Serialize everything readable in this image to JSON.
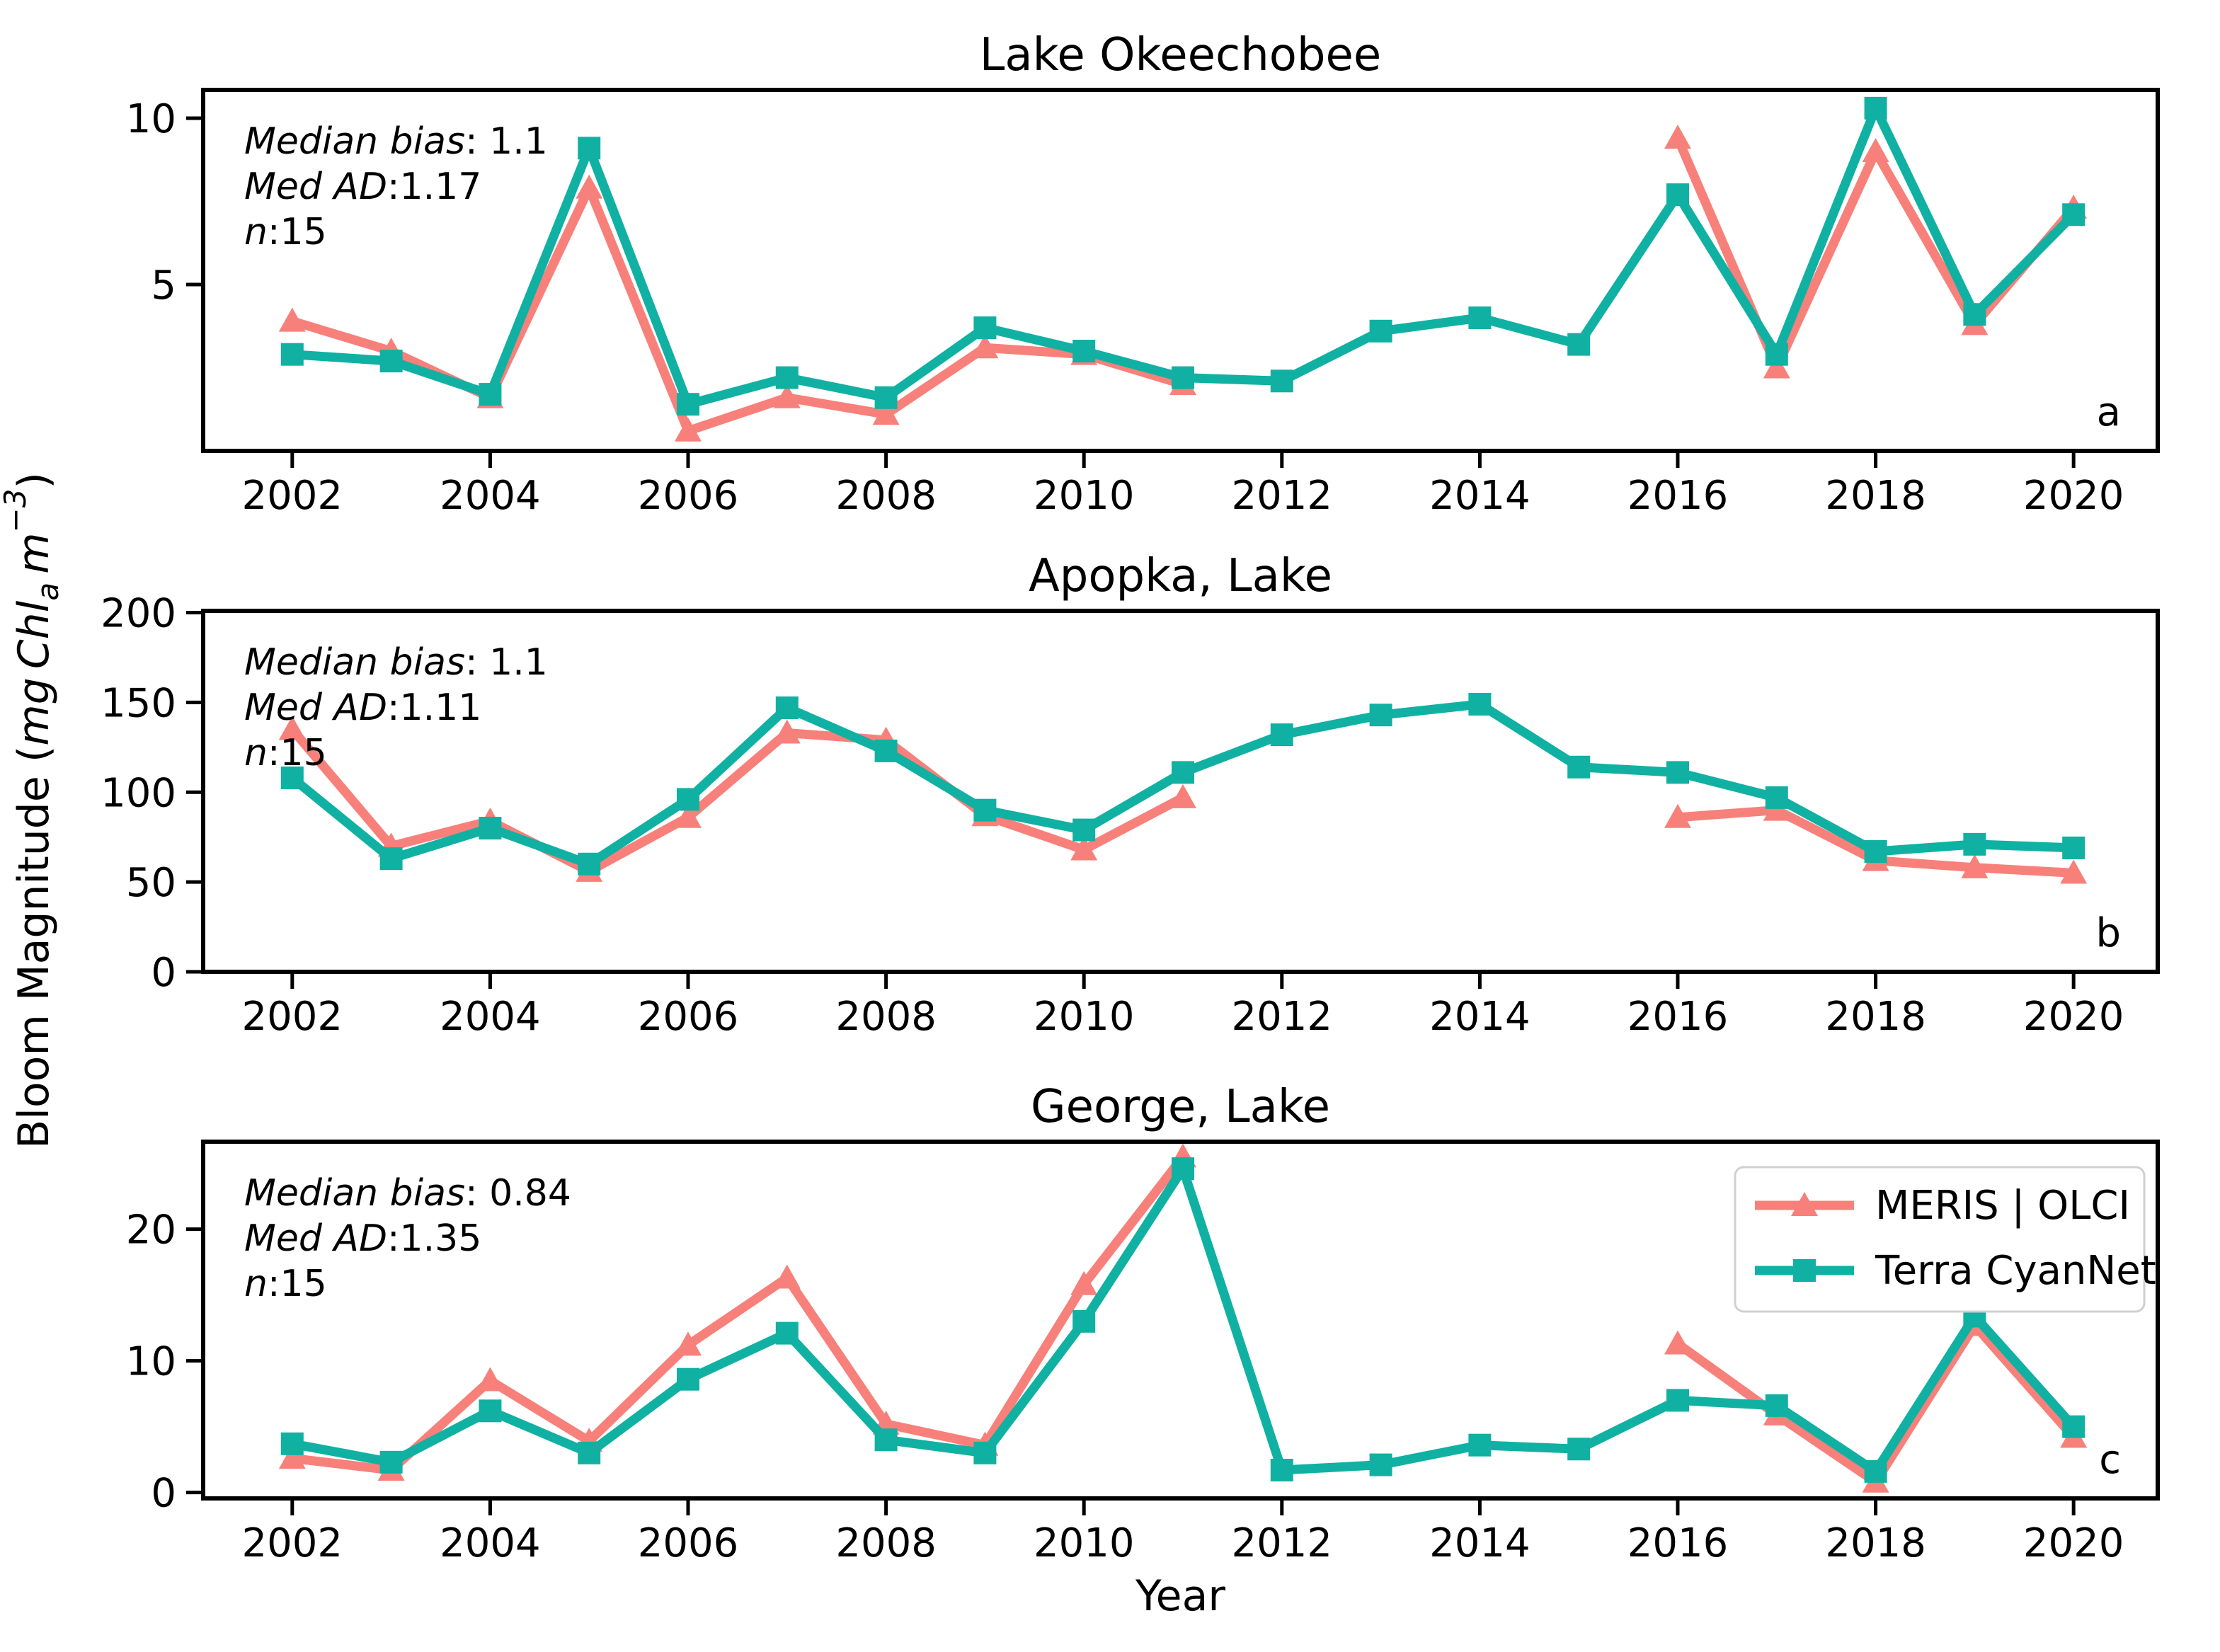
{
  "figure": {
    "xlabel": "Year",
    "ylabel_plain": "Bloom Magnitude (mg Chl_a m^-3)",
    "ylabel_parts": [
      {
        "t": "Bloom Magnitude (",
        "italic": false,
        "shift": "none"
      },
      {
        "t": "mg Chl",
        "italic": true,
        "shift": "none"
      },
      {
        "t": "a",
        "italic": true,
        "shift": "sub"
      },
      {
        "t": " m",
        "italic": true,
        "shift": "none"
      },
      {
        "t": "−3",
        "italic": true,
        "shift": "sup"
      },
      {
        "t": ")",
        "italic": false,
        "shift": "none"
      }
    ],
    "background_color": "#ffffff",
    "text_color": "#000000",
    "spine_color": "#000000"
  },
  "colors": {
    "meris": "#f8807a",
    "terra": "#10b1a3"
  },
  "legend": {
    "location": "upper-right of panel c",
    "items": [
      {
        "label": "MERIS | OLCI",
        "marker": "triangle",
        "color": "#f8807a"
      },
      {
        "label": "Terra CyanNet",
        "marker": "square",
        "color": "#10b1a3"
      }
    ]
  },
  "chart_data": [
    {
      "type": "line",
      "panel_letter": "a",
      "title": "Lake Okeechobee",
      "annotation": [
        {
          "label": "Median bias",
          "value": ": 1.1"
        },
        {
          "label": "Med AD",
          "value": ":1.17"
        },
        {
          "label": "n",
          "value": ":15"
        }
      ],
      "years": [
        2002,
        2003,
        2004,
        2005,
        2006,
        2007,
        2008,
        2009,
        2010,
        2011,
        2012,
        2013,
        2014,
        2015,
        2016,
        2017,
        2018,
        2019,
        2020
      ],
      "xticks": [
        2002,
        2004,
        2006,
        2008,
        2010,
        2012,
        2014,
        2016,
        2018,
        2020
      ],
      "yticks": [
        5,
        10
      ],
      "ylim": [
        0,
        10.85
      ],
      "grid": false,
      "series": [
        {
          "name": "MERIS | OLCI",
          "color": "#f8807a",
          "marker": "triangle",
          "values": [
            3.9,
            3.0,
            1.6,
            7.9,
            0.6,
            1.6,
            1.1,
            3.1,
            2.9,
            2.0,
            null,
            null,
            null,
            null,
            9.4,
            2.5,
            9.0,
            3.8,
            7.3
          ]
        },
        {
          "name": "Terra CyanNet",
          "color": "#10b1a3",
          "marker": "square",
          "values": [
            2.9,
            2.7,
            1.7,
            9.1,
            1.4,
            2.2,
            1.6,
            3.7,
            3.0,
            2.2,
            2.1,
            3.6,
            4.0,
            3.2,
            7.7,
            2.9,
            10.3,
            4.1,
            7.1
          ]
        }
      ]
    },
    {
      "type": "line",
      "panel_letter": "b",
      "title": "Apopka, Lake",
      "annotation": [
        {
          "label": "Median bias",
          "value": ": 1.1"
        },
        {
          "label": "Med AD",
          "value": ":1.11"
        },
        {
          "label": "n",
          "value": ":15"
        }
      ],
      "years": [
        2002,
        2003,
        2004,
        2005,
        2006,
        2007,
        2008,
        2009,
        2010,
        2011,
        2012,
        2013,
        2014,
        2015,
        2016,
        2017,
        2018,
        2019,
        2020
      ],
      "xticks": [
        2002,
        2004,
        2006,
        2008,
        2010,
        2012,
        2014,
        2016,
        2018,
        2020
      ],
      "yticks": [
        0,
        50,
        100,
        150,
        200
      ],
      "ylim": [
        0,
        201
      ],
      "grid": false,
      "series": [
        {
          "name": "MERIS | OLCI",
          "color": "#f8807a",
          "marker": "triangle",
          "values": [
            135,
            70,
            84,
            56,
            86,
            133,
            129,
            87,
            68,
            97,
            null,
            null,
            null,
            null,
            86,
            90,
            62,
            58,
            55
          ]
        },
        {
          "name": "Terra CyanNet",
          "color": "#10b1a3",
          "marker": "square",
          "values": [
            108,
            63,
            80,
            60,
            96,
            147,
            123,
            90,
            79,
            111,
            132,
            143,
            149,
            114,
            111,
            97,
            67,
            71,
            69
          ]
        }
      ]
    },
    {
      "type": "line",
      "panel_letter": "c",
      "title": "George, Lake",
      "annotation": [
        {
          "label": "Median bias",
          "value": ": 0.84"
        },
        {
          "label": "Med AD",
          "value": ":1.35"
        },
        {
          "label": "n",
          "value": ":15"
        }
      ],
      "years": [
        2002,
        2003,
        2004,
        2005,
        2006,
        2007,
        2008,
        2009,
        2010,
        2011,
        2012,
        2013,
        2014,
        2015,
        2016,
        2017,
        2018,
        2019,
        2020
      ],
      "xticks": [
        2002,
        2004,
        2006,
        2008,
        2010,
        2012,
        2014,
        2016,
        2018,
        2020
      ],
      "yticks": [
        0,
        10,
        20
      ],
      "ylim": [
        -0.45,
        26.65
      ],
      "grid": false,
      "series": [
        {
          "name": "MERIS | OLCI",
          "color": "#f8807a",
          "marker": "triangle",
          "values": [
            2.6,
            1.7,
            8.5,
            3.9,
            11.2,
            16.3,
            5.2,
            3.6,
            15.8,
            25.5,
            null,
            null,
            null,
            null,
            11.3,
            5.9,
            0.8,
            12.7,
            4.2
          ]
        },
        {
          "name": "Terra CyanNet",
          "color": "#10b1a3",
          "marker": "square",
          "values": [
            3.7,
            2.3,
            6.2,
            3.0,
            8.6,
            12.1,
            4.0,
            3.0,
            13.0,
            24.6,
            1.7,
            2.1,
            3.6,
            3.3,
            7.0,
            6.6,
            1.6,
            13.4,
            5.0
          ]
        }
      ]
    }
  ]
}
